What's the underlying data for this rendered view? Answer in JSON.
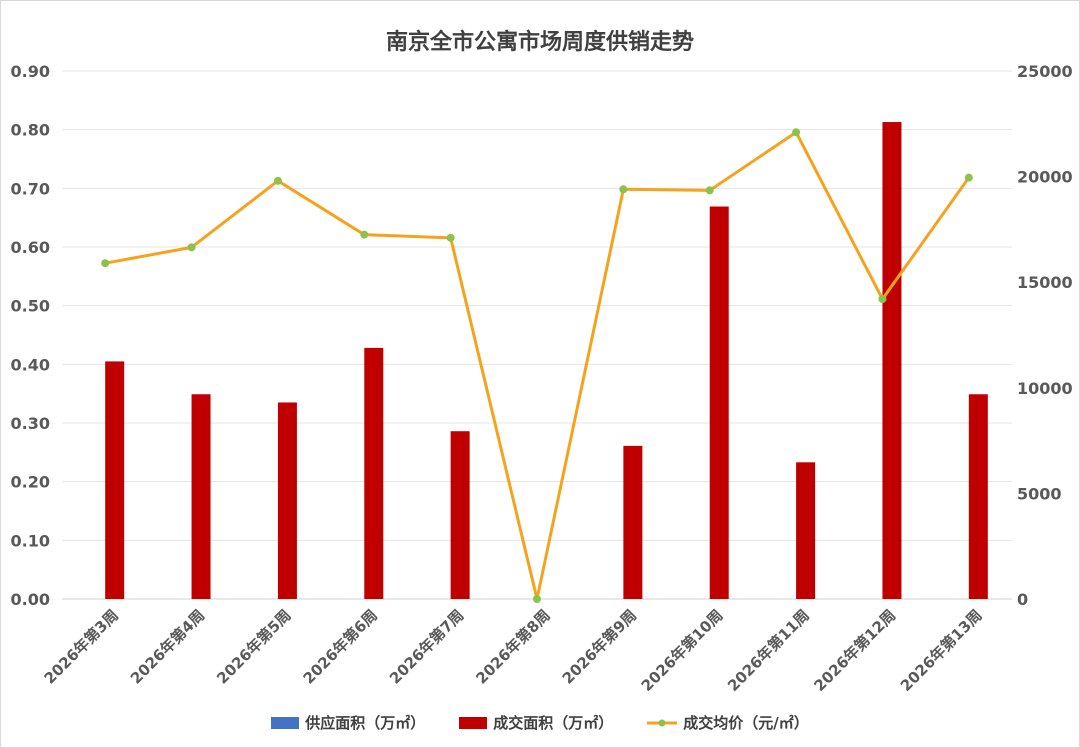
{
  "chart_data": {
    "type": "bar",
    "title": "南京全市公寓市场周度供销走势",
    "categories": [
      "2026年第3周",
      "2026年第4周",
      "2026年第5周",
      "2026年第6周",
      "2026年第7周",
      "2026年第8周",
      "2026年第9周",
      "2026年第10周",
      "2026年第11周",
      "2026年第12周",
      "2026年第13周"
    ],
    "series": [
      {
        "name": "供应面积（万㎡）",
        "type": "bar",
        "axis": "left",
        "color": "#4472c4",
        "values": [
          0,
          0,
          0,
          0,
          0,
          0,
          0,
          0,
          0,
          0,
          0
        ]
      },
      {
        "name": "成交面积（万㎡）",
        "type": "bar",
        "axis": "left",
        "color": "#c00000",
        "values": [
          0.405,
          0.349,
          0.335,
          0.428,
          0.286,
          0,
          0.261,
          0.669,
          0.233,
          0.813,
          0.349
        ]
      },
      {
        "name": "成交均价（元/㎡）",
        "type": "line",
        "axis": "right",
        "color": "#f5a31c",
        "marker_color": "#8bc34a",
        "values": [
          15900,
          16650,
          19800,
          17250,
          17100,
          0,
          19400,
          19350,
          22100,
          14200,
          19950
        ]
      }
    ],
    "y_left": {
      "min": 0,
      "max": 0.9,
      "step": 0.1,
      "decimals": 2
    },
    "y_right": {
      "min": 0,
      "max": 25000,
      "step": 5000
    },
    "grid": true,
    "legend_position": "bottom"
  }
}
